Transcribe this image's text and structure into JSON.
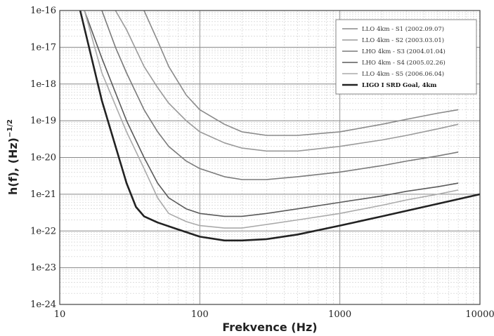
{
  "chart_data": {
    "type": "line",
    "xscale": "log",
    "yscale": "log",
    "xlim": [
      10,
      10000
    ],
    "ylim": [
      1e-24,
      1e-16
    ],
    "xlabel": "Frekvence (Hz)",
    "ylabel": "h(f), (Hz)",
    "ylabel_sup": "−1/2",
    "grid": true,
    "legend_position": "top-right",
    "x_ticks": [
      "10",
      "100",
      "1000",
      "10000"
    ],
    "y_ticks": [
      "1e-16",
      "1e-17",
      "1e-18",
      "1e-19",
      "1e-20",
      "1e-21",
      "1e-22",
      "1e-23",
      "1e-24"
    ],
    "series": [
      {
        "name": "LLO 4km - S1 (2002.09.07)",
        "color": "#8a8a8a",
        "x": [
          40,
          50,
          60,
          80,
          100,
          150,
          200,
          300,
          500,
          1000,
          2000,
          3000,
          5000,
          7000
        ],
        "y": [
          1e-16,
          1.5e-17,
          3e-18,
          5e-19,
          2e-19,
          8e-20,
          5e-20,
          4e-20,
          4e-20,
          5e-20,
          8e-20,
          1.1e-19,
          1.6e-19,
          2e-19
        ]
      },
      {
        "name": "LLO 4km - S2 (2003.03.01)",
        "color": "#9a9a9a",
        "x": [
          25,
          30,
          40,
          50,
          60,
          80,
          100,
          150,
          200,
          300,
          500,
          1000,
          2000,
          3000,
          5000,
          7000
        ],
        "y": [
          1e-16,
          3e-17,
          3e-18,
          8e-19,
          3e-19,
          1e-19,
          5e-20,
          2.5e-20,
          1.8e-20,
          1.5e-20,
          1.5e-20,
          2e-20,
          3e-20,
          4e-20,
          6e-20,
          8e-20
        ]
      },
      {
        "name": "LHO 4km - S3 (2004.01.04)",
        "color": "#7a7a7a",
        "x": [
          20,
          25,
          30,
          40,
          50,
          60,
          80,
          100,
          150,
          200,
          300,
          500,
          1000,
          2000,
          3000,
          5000,
          7000
        ],
        "y": [
          1e-16,
          1e-17,
          2e-18,
          2e-19,
          5e-20,
          2e-20,
          8e-21,
          5e-21,
          3e-21,
          2.5e-21,
          2.5e-21,
          3e-21,
          4e-21,
          6e-21,
          8e-21,
          1.1e-20,
          1.4e-20
        ]
      },
      {
        "name": "LHO 4km - S4 (2005.02.26)",
        "color": "#5a5a5a",
        "x": [
          15,
          20,
          30,
          40,
          50,
          60,
          80,
          100,
          150,
          200,
          300,
          500,
          1000,
          2000,
          3000,
          5000,
          7000
        ],
        "y": [
          1e-16,
          5e-18,
          1e-19,
          1e-20,
          2e-21,
          8e-22,
          4e-22,
          3e-22,
          2.5e-22,
          2.5e-22,
          3e-22,
          4e-22,
          6e-22,
          9e-22,
          1.2e-21,
          1.6e-21,
          2e-21
        ]
      },
      {
        "name": "LLO 4km - S5 (2006.06.04)",
        "color": "#aaaaaa",
        "x": [
          15,
          20,
          30,
          40,
          50,
          60,
          80,
          100,
          150,
          200,
          300,
          500,
          1000,
          2000,
          3000,
          5000,
          7000
        ],
        "y": [
          1e-16,
          2e-18,
          5e-20,
          5e-21,
          8e-22,
          3e-22,
          1.8e-22,
          1.4e-22,
          1.2e-22,
          1.2e-22,
          1.5e-22,
          2e-22,
          3e-22,
          5e-22,
          7e-22,
          1e-21,
          1.3e-21
        ]
      },
      {
        "name": "LIGO I SRD Goal, 4km",
        "color": "#222222",
        "bold": true,
        "x": [
          14,
          20,
          30,
          35,
          40,
          50,
          70,
          100,
          150,
          200,
          300,
          500,
          1000,
          2000,
          5000,
          10000
        ],
        "y": [
          1e-16,
          3.5e-19,
          2e-21,
          4.5e-22,
          2.5e-22,
          1.7e-22,
          1.1e-22,
          7e-23,
          5.5e-23,
          5.5e-23,
          6e-23,
          8e-23,
          1.4e-22,
          2.5e-22,
          5.5e-22,
          1e-21
        ]
      }
    ]
  }
}
